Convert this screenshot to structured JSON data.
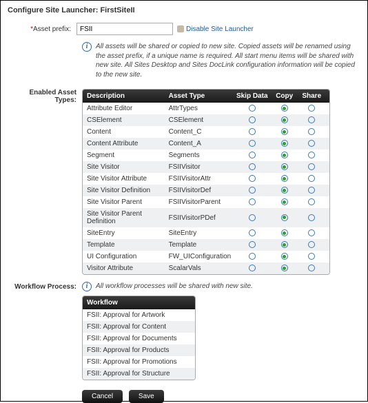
{
  "page": {
    "title": "Configure Site Launcher: FirstSiteII"
  },
  "form": {
    "asset_prefix_label": "Asset prefix:",
    "asset_prefix_value": "FSII",
    "disable_link": "Disable Site Launcher",
    "info_text": "All assets will be shared or copied to new site. Copied assets will be renamed using the asset prefix, if a unique name is required. All start menu items will be shared with new site. All Sites Desktop and Sites DocLink configuration information will be copied to the new site."
  },
  "asset_types": {
    "section_label": "Enabled Asset Types:",
    "headers": {
      "desc": "Description",
      "type": "Asset Type",
      "skip": "Skip Data",
      "copy": "Copy",
      "share": "Share"
    },
    "rows": [
      {
        "desc": "Attribute Editor",
        "type": "AttrTypes",
        "selected": "copy"
      },
      {
        "desc": "CSElement",
        "type": "CSElement",
        "selected": "copy"
      },
      {
        "desc": "Content",
        "type": "Content_C",
        "selected": "copy"
      },
      {
        "desc": "Content Attribute",
        "type": "Content_A",
        "selected": "copy"
      },
      {
        "desc": "Segment",
        "type": "Segments",
        "selected": "copy"
      },
      {
        "desc": "Site Visitor",
        "type": "FSIIVisitor",
        "selected": "copy"
      },
      {
        "desc": "Site Visitor Attribute",
        "type": "FSIIVisitorAttr",
        "selected": "copy"
      },
      {
        "desc": "Site Visitor Definition",
        "type": "FSIIVisitorDef",
        "selected": "copy"
      },
      {
        "desc": "Site Visitor Parent",
        "type": "FSIIVisitorParent",
        "selected": "copy"
      },
      {
        "desc": "Site Visitor Parent Definition",
        "type": "FSIIVisitorPDef",
        "selected": "copy"
      },
      {
        "desc": "SiteEntry",
        "type": "SiteEntry",
        "selected": "copy"
      },
      {
        "desc": "Template",
        "type": "Template",
        "selected": "copy"
      },
      {
        "desc": "UI Configuration",
        "type": "FW_UIConfiguration",
        "selected": "copy"
      },
      {
        "desc": "Visitor Attribute",
        "type": "ScalarVals",
        "selected": "copy"
      }
    ]
  },
  "workflow": {
    "section_label": "Workflow Process:",
    "info_text": "All workflow processes will be shared with new site.",
    "header": "Workflow",
    "rows": [
      "FSII: Approval for Artwork",
      "FSII: Approval for Content",
      "FSII: Approval for Documents",
      "FSII: Approval for Products",
      "FSII: Approval for Promotions",
      "FSII: Approval for Structure"
    ]
  },
  "buttons": {
    "cancel": "Cancel",
    "save": "Save"
  },
  "colors": {
    "header_bg": "#1a1a1a",
    "alt_row": "#eef0f2",
    "radio_border": "#3a78b5",
    "radio_fill": "#2e9e2e",
    "link": "#1a5a9c"
  }
}
